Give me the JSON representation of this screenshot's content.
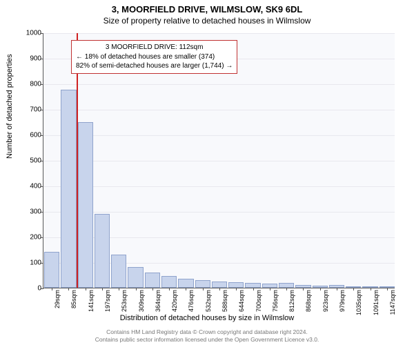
{
  "title_line1": "3, MOORFIELD DRIVE, WILMSLOW, SK9 6DL",
  "title_line2": "Size of property relative to detached houses in Wilmslow",
  "chart": {
    "type": "histogram",
    "ylabel": "Number of detached properties",
    "xlabel": "Distribution of detached houses by size in Wilmslow",
    "ylim": [
      0,
      1000
    ],
    "ytick_step": 100,
    "xticks": [
      "29sqm",
      "85sqm",
      "141sqm",
      "197sqm",
      "253sqm",
      "309sqm",
      "364sqm",
      "420sqm",
      "476sqm",
      "532sqm",
      "588sqm",
      "644sqm",
      "700sqm",
      "756sqm",
      "812sqm",
      "868sqm",
      "923sqm",
      "979sqm",
      "1035sqm",
      "1091sqm",
      "1147sqm"
    ],
    "bars": [
      140,
      775,
      650,
      290,
      130,
      80,
      60,
      45,
      35,
      30,
      25,
      22,
      20,
      15,
      20,
      12,
      8,
      10,
      6,
      5,
      4
    ],
    "bar_fill": "#c8d4ec",
    "bar_stroke": "#8fa3cc",
    "plot_bg": "#f8f9fc",
    "grid_color": "#e8e8ee",
    "ref_line_color": "#d02020",
    "ref_line_x_index": 1.48,
    "annotation": {
      "line1": "3 MOORFIELD DRIVE: 112sqm",
      "line2": "← 18% of detached houses are smaller (374)",
      "line3": "82% of semi-detached houses are larger (1,744) →",
      "border_color": "#c03030"
    }
  },
  "footer": {
    "line1": "Contains HM Land Registry data © Crown copyright and database right 2024.",
    "line2": "Contains public sector information licensed under the Open Government Licence v3.0."
  }
}
